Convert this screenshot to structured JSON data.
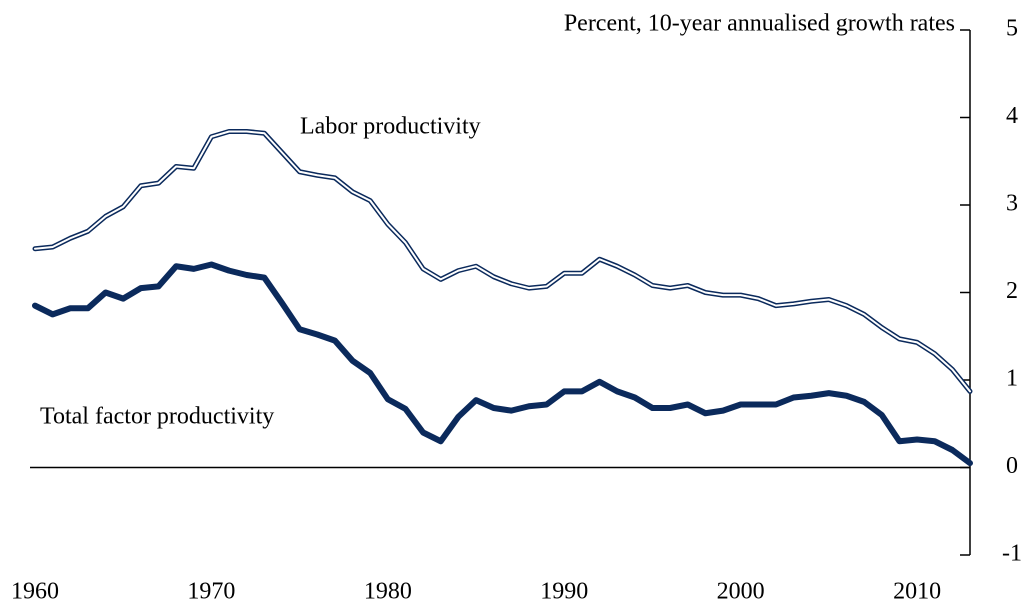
{
  "chart_data": {
    "type": "line",
    "y_axis_label": "Percent, 10-year annualised growth rates",
    "x": [
      1960,
      1961,
      1962,
      1963,
      1964,
      1965,
      1966,
      1967,
      1968,
      1969,
      1970,
      1971,
      1972,
      1973,
      1974,
      1975,
      1976,
      1977,
      1978,
      1979,
      1980,
      1981,
      1982,
      1983,
      1984,
      1985,
      1986,
      1987,
      1988,
      1989,
      1990,
      1991,
      1992,
      1993,
      1994,
      1995,
      1996,
      1997,
      1998,
      1999,
      2000,
      2001,
      2002,
      2003,
      2004,
      2005,
      2006,
      2007,
      2008,
      2009,
      2010,
      2011,
      2012,
      2013
    ],
    "series": [
      {
        "name": "Labor productivity",
        "color": "#0b2a5c",
        "style": "outline",
        "values": [
          2.5,
          2.52,
          2.62,
          2.7,
          2.87,
          2.98,
          3.22,
          3.25,
          3.44,
          3.42,
          3.78,
          3.84,
          3.84,
          3.82,
          3.6,
          3.38,
          3.34,
          3.31,
          3.15,
          3.05,
          2.78,
          2.57,
          2.27,
          2.15,
          2.25,
          2.3,
          2.18,
          2.1,
          2.05,
          2.07,
          2.22,
          2.22,
          2.38,
          2.3,
          2.2,
          2.08,
          2.05,
          2.08,
          2.0,
          1.97,
          1.97,
          1.93,
          1.85,
          1.87,
          1.9,
          1.92,
          1.85,
          1.75,
          1.6,
          1.47,
          1.43,
          1.3,
          1.12,
          0.87
        ]
      },
      {
        "name": "Total factor productivity",
        "color": "#0b2a5c",
        "style": "solid",
        "values": [
          1.85,
          1.75,
          1.82,
          1.82,
          2.0,
          1.93,
          2.05,
          2.07,
          2.3,
          2.27,
          2.32,
          2.25,
          2.2,
          2.17,
          1.88,
          1.58,
          1.52,
          1.45,
          1.22,
          1.08,
          0.78,
          0.67,
          0.4,
          0.3,
          0.58,
          0.77,
          0.68,
          0.65,
          0.7,
          0.72,
          0.87,
          0.87,
          0.98,
          0.87,
          0.8,
          0.68,
          0.68,
          0.72,
          0.62,
          0.65,
          0.72,
          0.72,
          0.72,
          0.8,
          0.82,
          0.85,
          0.82,
          0.75,
          0.6,
          0.3,
          0.32,
          0.3,
          0.2,
          0.05
        ]
      }
    ],
    "xlim": [
      1960,
      2013
    ],
    "xticks": [
      1960,
      1970,
      1980,
      1990,
      2000,
      2010
    ],
    "ylim": [
      -1,
      5
    ],
    "yticks": [
      -1,
      0,
      1,
      2,
      3,
      4,
      5
    ],
    "y_axis_side": "right",
    "grid": false
  }
}
